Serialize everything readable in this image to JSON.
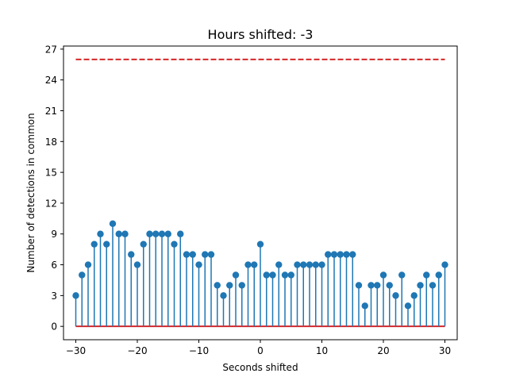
{
  "chart_data": {
    "type": "stem",
    "title": "Hours shifted: -3",
    "xlabel": "Seconds shifted",
    "ylabel": "Number of detections in common",
    "xlim": [
      -32,
      32
    ],
    "ylim": [
      -1.3,
      27.3
    ],
    "xticks": [
      -30,
      -20,
      -10,
      0,
      10,
      20,
      30
    ],
    "xtick_labels": [
      "−30",
      "−20",
      "−10",
      "0",
      "10",
      "20",
      "30"
    ],
    "yticks": [
      0,
      3,
      6,
      9,
      12,
      15,
      18,
      21,
      24,
      27
    ],
    "ytick_labels": [
      "0",
      "3",
      "6",
      "9",
      "12",
      "15",
      "18",
      "21",
      "24",
      "27"
    ],
    "grid": false,
    "colors": {
      "stem": "#1f77b4",
      "baseline": "#d62728",
      "reference_line": "#d62728"
    },
    "baseline_y": 0,
    "reference_line": {
      "y": 26,
      "style": "dashed",
      "x_range": [
        -30,
        30
      ]
    },
    "x": [
      -30,
      -29,
      -28,
      -27,
      -26,
      -25,
      -24,
      -23,
      -22,
      -21,
      -20,
      -19,
      -18,
      -17,
      -16,
      -15,
      -14,
      -13,
      -12,
      -11,
      -10,
      -9,
      -8,
      -7,
      -6,
      -5,
      -4,
      -3,
      -2,
      -1,
      0,
      1,
      2,
      3,
      4,
      5,
      6,
      7,
      8,
      9,
      10,
      11,
      12,
      13,
      14,
      15,
      16,
      17,
      18,
      19,
      20,
      21,
      22,
      23,
      24,
      25,
      26,
      27,
      28,
      29,
      30
    ],
    "y": [
      3,
      5,
      6,
      8,
      9,
      8,
      10,
      9,
      9,
      7,
      6,
      8,
      9,
      9,
      9,
      9,
      8,
      9,
      7,
      7,
      6,
      7,
      7,
      4,
      3,
      4,
      5,
      4,
      6,
      6,
      8,
      5,
      5,
      6,
      5,
      5,
      6,
      6,
      6,
      6,
      6,
      7,
      7,
      7,
      7,
      7,
      4,
      2,
      4,
      4,
      5,
      4,
      3,
      5,
      2,
      3,
      4,
      5,
      4,
      5,
      6
    ]
  }
}
